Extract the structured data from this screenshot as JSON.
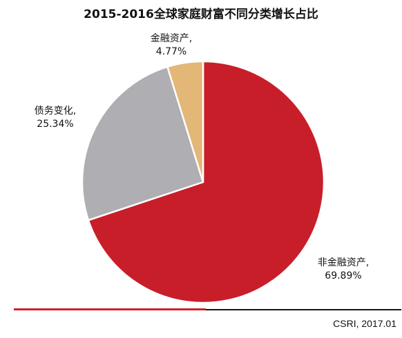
{
  "chart_data": {
    "type": "pie",
    "title": "2015-2016全球家庭财富不同分类增长占比",
    "slices": [
      {
        "label": "非金融资产,",
        "value": 69.89,
        "value_text": "69.89%",
        "color": "#c81e2a"
      },
      {
        "label": "债务变化,",
        "value": 25.34,
        "value_text": "25.34%",
        "color": "#aeaeb3"
      },
      {
        "label": "金融资产,",
        "value": 4.77,
        "value_text": "4.77%",
        "color": "#e3b777"
      }
    ],
    "source": "CSRI, 2017.01"
  }
}
